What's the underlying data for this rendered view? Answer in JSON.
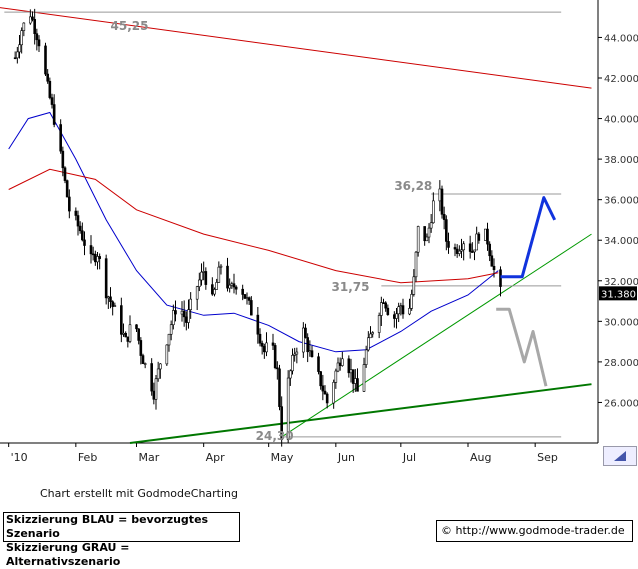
{
  "chart_data": {
    "type": "candlestick",
    "title": "",
    "x_axis_labels": [
      "'10",
      "Feb",
      "Mar",
      "Apr",
      "May",
      "Jun",
      "Jul",
      "Aug",
      "Sep"
    ],
    "y_axis_labels": [
      "44.000",
      "42.000",
      "40.000",
      "38.000",
      "36.000",
      "34.000",
      "32.000",
      "30.000",
      "28.000",
      "26.000"
    ],
    "y_ticks": [
      44,
      42,
      40,
      38,
      36,
      34,
      32,
      30,
      28,
      26
    ],
    "ylim": [
      24.0,
      45.6
    ],
    "last_price": "31.380",
    "annotations": [
      "45,25",
      "36,28",
      "31,75",
      "24,30"
    ],
    "grid": false,
    "price_path": [
      {
        "d": "2010-01-04",
        "v": 43.0
      },
      {
        "d": "2010-01-07",
        "v": 44.4
      },
      {
        "d": "2010-01-11",
        "v": 45.2
      },
      {
        "d": "2010-01-15",
        "v": 43.8
      },
      {
        "d": "2010-01-19",
        "v": 41.5
      },
      {
        "d": "2010-01-22",
        "v": 40.0
      },
      {
        "d": "2010-01-26",
        "v": 37.5
      },
      {
        "d": "2010-01-29",
        "v": 35.5
      },
      {
        "d": "2010-02-03",
        "v": 34.5
      },
      {
        "d": "2010-02-08",
        "v": 33.0
      },
      {
        "d": "2010-02-11",
        "v": 33.4
      },
      {
        "d": "2010-02-15",
        "v": 31.5
      },
      {
        "d": "2010-02-19",
        "v": 30.5
      },
      {
        "d": "2010-02-24",
        "v": 29.0
      },
      {
        "d": "2010-02-28",
        "v": 30.2
      },
      {
        "d": "2010-03-03",
        "v": 28.5
      },
      {
        "d": "2010-03-06",
        "v": 27.5
      },
      {
        "d": "2010-03-09",
        "v": 26.5
      },
      {
        "d": "2010-03-12",
        "v": 28.0
      },
      {
        "d": "2010-03-16",
        "v": 29.5
      },
      {
        "d": "2010-03-20",
        "v": 31.0
      },
      {
        "d": "2010-03-24",
        "v": 30.0
      },
      {
        "d": "2010-03-28",
        "v": 31.5
      },
      {
        "d": "2010-04-01",
        "v": 32.5
      },
      {
        "d": "2010-04-05",
        "v": 31.0
      },
      {
        "d": "2010-04-09",
        "v": 32.8
      },
      {
        "d": "2010-04-13",
        "v": 31.5
      },
      {
        "d": "2010-04-17",
        "v": 32.0
      },
      {
        "d": "2010-04-21",
        "v": 31.0
      },
      {
        "d": "2010-04-25",
        "v": 30.0
      },
      {
        "d": "2010-04-29",
        "v": 28.5
      },
      {
        "d": "2010-05-02",
        "v": 29.0
      },
      {
        "d": "2010-05-05",
        "v": 27.5
      },
      {
        "d": "2010-05-07",
        "v": 24.4
      },
      {
        "d": "2010-05-10",
        "v": 27.0
      },
      {
        "d": "2010-05-13",
        "v": 28.5
      },
      {
        "d": "2010-05-17",
        "v": 29.5
      },
      {
        "d": "2010-05-21",
        "v": 28.0
      },
      {
        "d": "2010-05-25",
        "v": 27.0
      },
      {
        "d": "2010-05-28",
        "v": 26.0
      },
      {
        "d": "2010-06-01",
        "v": 27.5
      },
      {
        "d": "2010-06-04",
        "v": 28.5
      },
      {
        "d": "2010-06-08",
        "v": 27.5
      },
      {
        "d": "2010-06-11",
        "v": 26.5
      },
      {
        "d": "2010-06-15",
        "v": 28.5
      },
      {
        "d": "2010-06-19",
        "v": 30.0
      },
      {
        "d": "2010-06-23",
        "v": 31.2
      },
      {
        "d": "2010-06-27",
        "v": 30.0
      },
      {
        "d": "2010-07-01",
        "v": 30.8
      },
      {
        "d": "2010-07-04",
        "v": 30.0
      },
      {
        "d": "2010-07-07",
        "v": 32.0
      },
      {
        "d": "2010-07-09",
        "v": 34.5
      },
      {
        "d": "2010-07-13",
        "v": 34.0
      },
      {
        "d": "2010-07-16",
        "v": 35.8
      },
      {
        "d": "2010-07-19",
        "v": 36.2
      },
      {
        "d": "2010-07-22",
        "v": 34.0
      },
      {
        "d": "2010-07-26",
        "v": 33.5
      },
      {
        "d": "2010-07-30",
        "v": 34.0
      },
      {
        "d": "2010-08-03",
        "v": 33.5
      },
      {
        "d": "2010-08-07",
        "v": 34.6
      },
      {
        "d": "2010-08-10",
        "v": 34.0
      },
      {
        "d": "2010-08-13",
        "v": 32.5
      },
      {
        "d": "2010-08-16",
        "v": 31.4
      }
    ],
    "series": [
      {
        "name": "",
        "color": "#0000cc",
        "points": [
          {
            "d": "2010-01-01",
            "v": 38.5
          },
          {
            "d": "2010-01-10",
            "v": 40.0
          },
          {
            "d": "2010-01-20",
            "v": 40.3
          },
          {
            "d": "2010-02-01",
            "v": 38.0
          },
          {
            "d": "2010-02-15",
            "v": 35.0
          },
          {
            "d": "2010-03-01",
            "v": 32.5
          },
          {
            "d": "2010-03-15",
            "v": 30.8
          },
          {
            "d": "2010-04-01",
            "v": 30.3
          },
          {
            "d": "2010-04-15",
            "v": 30.4
          },
          {
            "d": "2010-05-01",
            "v": 29.8
          },
          {
            "d": "2010-05-15",
            "v": 29.0
          },
          {
            "d": "2010-06-01",
            "v": 28.5
          },
          {
            "d": "2010-06-15",
            "v": 28.6
          },
          {
            "d": "2010-07-01",
            "v": 29.5
          },
          {
            "d": "2010-07-15",
            "v": 30.5
          },
          {
            "d": "2010-08-01",
            "v": 31.3
          },
          {
            "d": "2010-08-15",
            "v": 32.5
          }
        ]
      },
      {
        "name": "",
        "color": "#cc0000",
        "points": [
          {
            "d": "2010-01-01",
            "v": 36.5
          },
          {
            "d": "2010-01-20",
            "v": 37.5
          },
          {
            "d": "2010-02-10",
            "v": 37.0
          },
          {
            "d": "2010-03-01",
            "v": 35.5
          },
          {
            "d": "2010-04-01",
            "v": 34.3
          },
          {
            "d": "2010-05-01",
            "v": 33.5
          },
          {
            "d": "2010-06-01",
            "v": 32.5
          },
          {
            "d": "2010-07-01",
            "v": 31.9
          },
          {
            "d": "2010-08-01",
            "v": 32.1
          },
          {
            "d": "2010-08-15",
            "v": 32.4
          }
        ]
      }
    ],
    "lines": [
      {
        "color": "#cc0000",
        "width": 1,
        "from": {
          "d": "2009-12-26",
          "v": 45.5
        },
        "to": {
          "d": "2010-09-27",
          "v": 41.5
        }
      },
      {
        "color": "#009900",
        "width": 1,
        "from": {
          "d": "2010-05-07",
          "v": 24.3
        },
        "to": {
          "d": "2010-09-27",
          "v": 34.3
        }
      },
      {
        "color": "#007700",
        "width": 2,
        "from": {
          "d": "2010-02-26",
          "v": 24.0
        },
        "to": {
          "d": "2010-09-27",
          "v": 26.9
        }
      },
      {
        "color": "#999999",
        "width": 1,
        "from": {
          "d": "2010-07-15",
          "v": 36.28
        },
        "to": {
          "d": "2010-09-13",
          "v": 36.28
        }
      },
      {
        "color": "#999999",
        "width": 1,
        "from": {
          "d": "2010-06-22",
          "v": 31.75
        },
        "to": {
          "d": "2010-09-13",
          "v": 31.75
        }
      },
      {
        "color": "#999999",
        "width": 1,
        "from": {
          "d": "2010-05-07",
          "v": 24.3
        },
        "to": {
          "d": "2010-09-13",
          "v": 24.3
        }
      },
      {
        "color": "#999999",
        "width": 1,
        "from": {
          "d": "2009-12-30",
          "v": 45.25
        },
        "to": {
          "d": "2010-09-13",
          "v": 45.25
        }
      }
    ],
    "scenarios": [
      {
        "name": "BLAU",
        "color": "#1133dd",
        "points": [
          {
            "d": "2010-08-16",
            "v": 32.2
          },
          {
            "d": "2010-08-26",
            "v": 32.2
          },
          {
            "d": "2010-09-05",
            "v": 36.1
          },
          {
            "d": "2010-09-10",
            "v": 35.0
          }
        ]
      },
      {
        "name": "GRAU",
        "color": "#a8a8a8",
        "points": [
          {
            "d": "2010-08-14",
            "v": 30.6
          },
          {
            "d": "2010-08-20",
            "v": 30.6
          },
          {
            "d": "2010-08-27",
            "v": 28.0
          },
          {
            "d": "2010-08-31",
            "v": 29.5
          },
          {
            "d": "2010-09-06",
            "v": 26.8
          }
        ]
      }
    ]
  },
  "footer": {
    "credit": "Chart erstellt mit GodmodeCharting",
    "legend_line1": "Skizzierung BLAU = bevorzugtes Szenario",
    "legend_line2": "Skizzierung GRAU = Alternativszenario",
    "url": "http://www.godmode-trader.de",
    "copyright_symbol": "©"
  }
}
